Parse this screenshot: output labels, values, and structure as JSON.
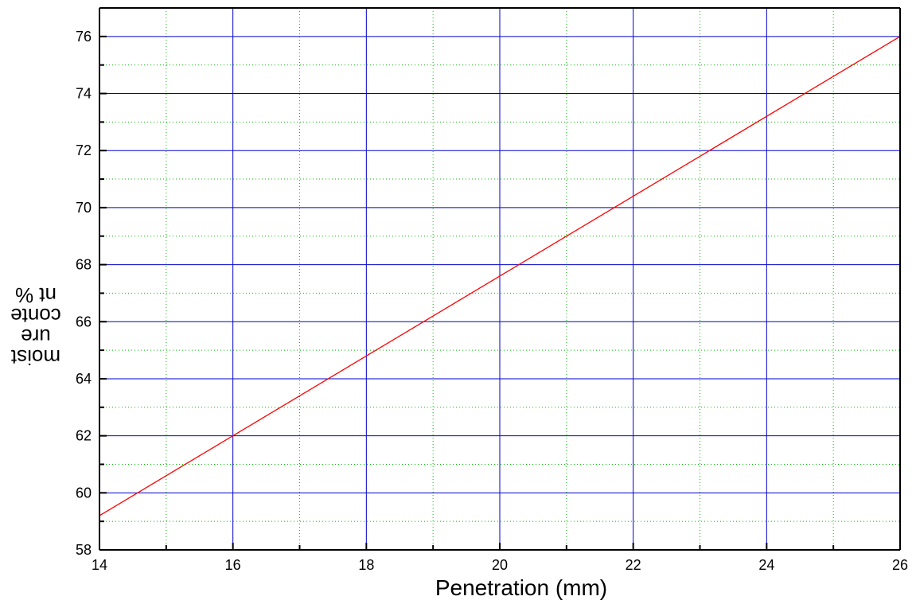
{
  "chart_data": {
    "type": "line",
    "title": "",
    "xlabel": "Penetration (mm)",
    "ylabel_lines": [
      "moist",
      "ure",
      "conte",
      "nt %"
    ],
    "xlim": [
      14,
      26
    ],
    "ylim": [
      58,
      77
    ],
    "x_ticks": [
      "14",
      "16",
      "18",
      "20",
      "22",
      "24",
      "26"
    ],
    "y_ticks": [
      "58",
      "60",
      "62",
      "64",
      "66",
      "68",
      "70",
      "72",
      "74",
      "76"
    ],
    "grid": {
      "major": true,
      "minor": true
    },
    "series": [
      {
        "x": [
          14,
          26
        ],
        "y": [
          59.2,
          76.0
        ]
      }
    ],
    "colors": {
      "line": "#ff0000",
      "major_grid": "#0000cc",
      "minor_grid": "#00bb00",
      "axes": "#000000"
    }
  }
}
